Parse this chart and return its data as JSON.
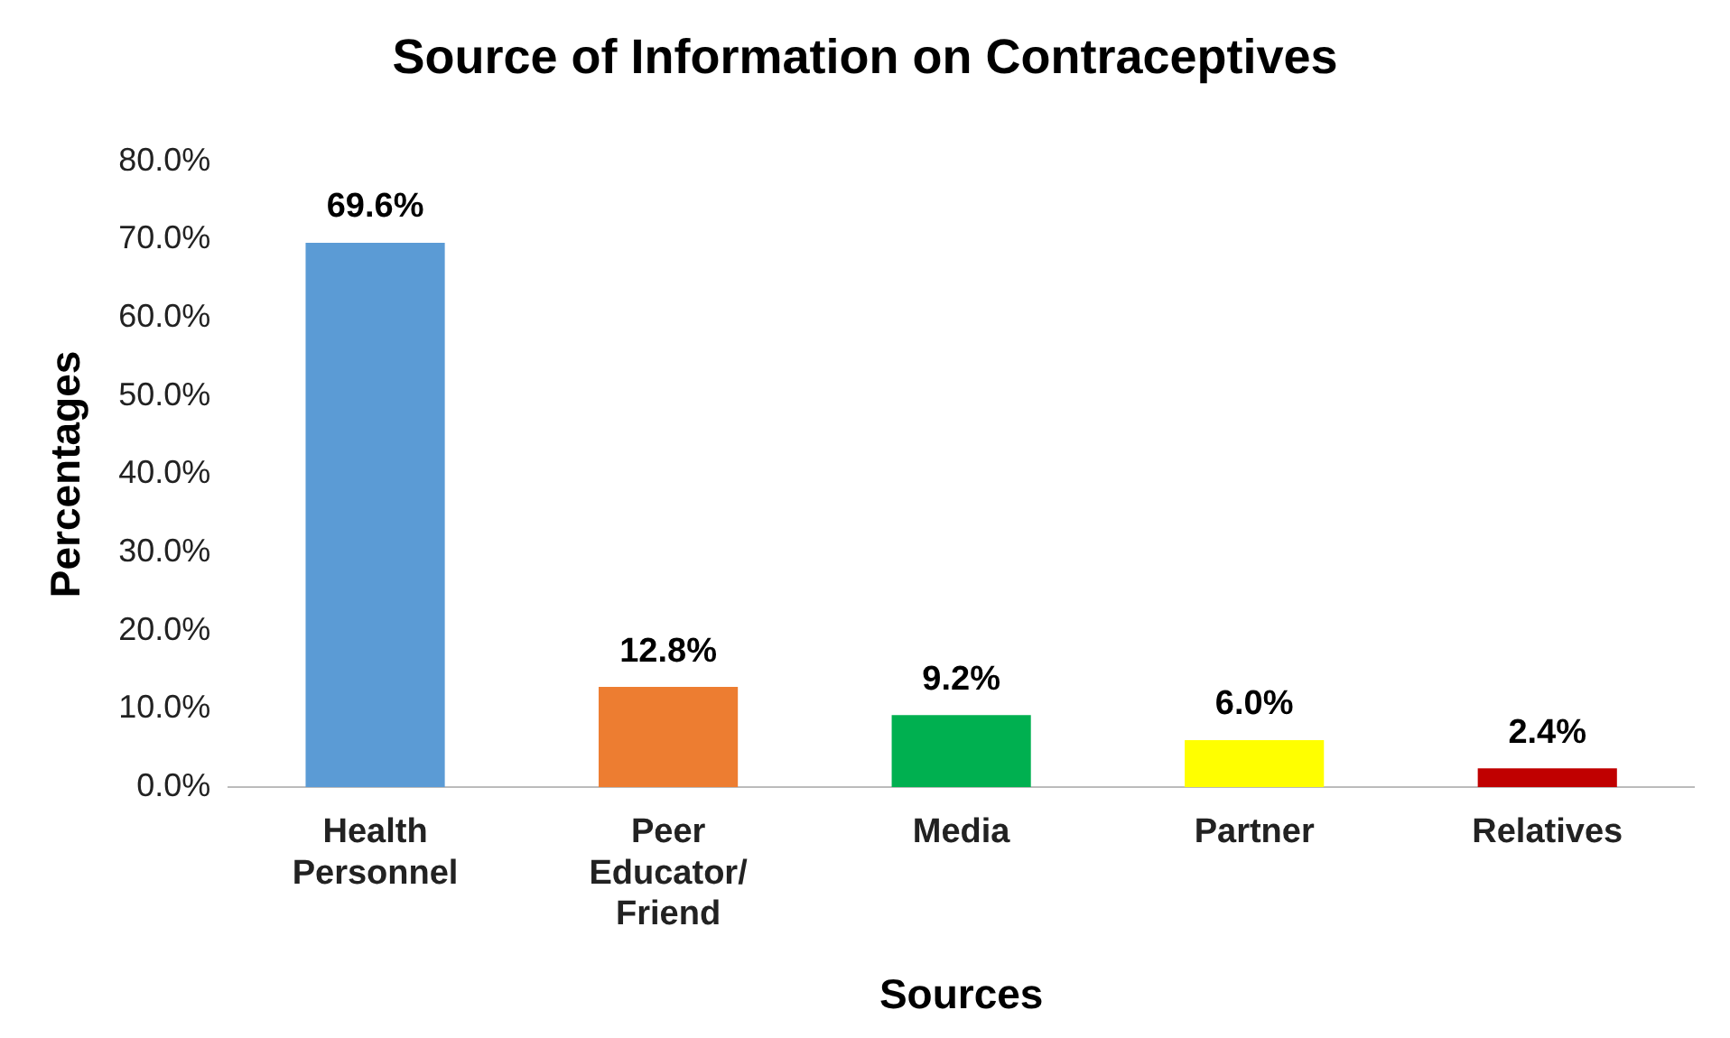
{
  "chart_data": {
    "type": "bar",
    "title": "Source of Information on Contraceptives",
    "xlabel": "Sources",
    "ylabel": "Percentages",
    "categories": [
      "Health Personnel",
      "Peer Educator/Friend",
      "Media",
      "Partner",
      "Relatives"
    ],
    "values": [
      69.6,
      12.8,
      9.2,
      6.0,
      2.4
    ],
    "colors": [
      "#5b9bd5",
      "#ed7d31",
      "#00b050",
      "#ffff00",
      "#c00000"
    ],
    "value_labels": [
      "69.6%",
      "12.8%",
      "9.2%",
      "6.0%",
      "2.4%"
    ],
    "ylim": [
      0,
      80
    ],
    "yticks": [
      {
        "value": 0,
        "label": "0.0%"
      },
      {
        "value": 10,
        "label": "10.0%"
      },
      {
        "value": 20,
        "label": "20.0%"
      },
      {
        "value": 30,
        "label": "30.0%"
      },
      {
        "value": 40,
        "label": "40.0%"
      },
      {
        "value": 50,
        "label": "50.0%"
      },
      {
        "value": 60,
        "label": "60.0%"
      },
      {
        "value": 70,
        "label": "70.0%"
      },
      {
        "value": 80,
        "label": "80.0%"
      }
    ],
    "grid": false,
    "legend": false
  }
}
